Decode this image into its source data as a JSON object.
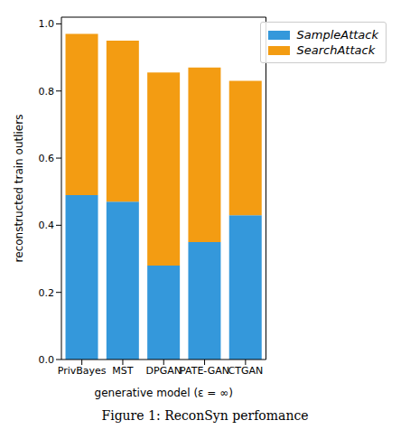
{
  "chart_data": {
    "type": "bar",
    "title": "Figure 1: ReconSyn perfomance",
    "x_label": "generative model (ε = ∞)",
    "y_label": "reconstructed train outliers",
    "categories": [
      "PrivBayes",
      "MST",
      "DPGAN",
      "PATE-GAN",
      "CTGAN"
    ],
    "series": [
      {
        "name": "SampleAttack",
        "color": "#3498db",
        "values": [
          0.49,
          0.47,
          0.28,
          0.35,
          0.43
        ]
      },
      {
        "name": "SearchAttack",
        "color": "#f39c12",
        "values": [
          0.48,
          0.48,
          0.575,
          0.52,
          0.4
        ]
      }
    ],
    "stacked": true,
    "ylim": [
      0,
      1.02
    ],
    "yticks": [
      {
        "value": 0,
        "label": "0.0"
      },
      {
        "value": 0.2,
        "label": "0.2"
      },
      {
        "value": 0.4,
        "label": "0.4"
      },
      {
        "value": 0.6,
        "label": "0.6"
      },
      {
        "value": 0.8,
        "label": "0.8"
      },
      {
        "value": 1,
        "label": "1.0"
      }
    ],
    "grid": false,
    "legend": "upper right"
  }
}
